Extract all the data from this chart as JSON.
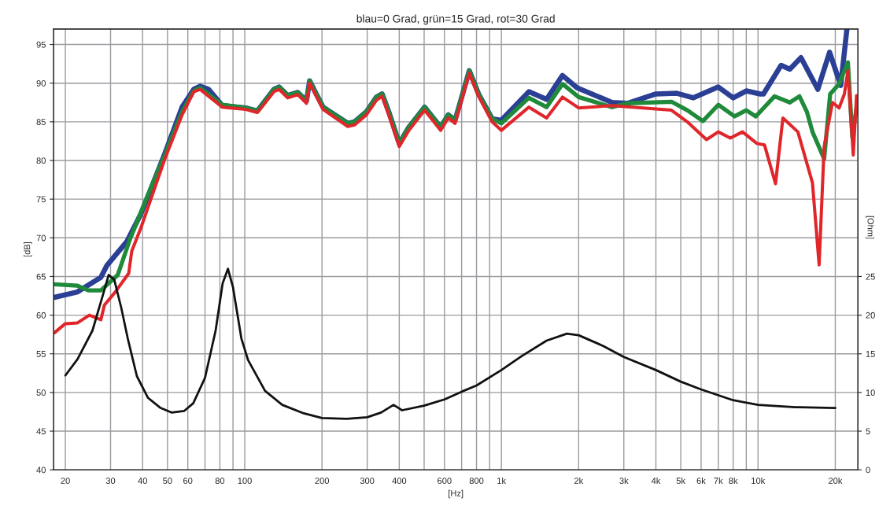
{
  "chart_data": {
    "type": "line",
    "title": "blau=0 Grad, grün=15 Grad, rot=30 Grad",
    "xlabel": "[Hz]",
    "ylabel": "[dB]",
    "y2label": "[Ohm]",
    "log": "x",
    "grid": true,
    "marker": "none",
    "line_style": "solid",
    "xlim": [
      18,
      24500
    ],
    "ylim": [
      40,
      97
    ],
    "y2lim": [
      0,
      57
    ],
    "xticks": [
      20,
      30,
      40,
      50,
      60,
      {
        "value": 70,
        "label": null
      },
      80,
      {
        "value": 90,
        "label": null
      },
      100,
      200,
      300,
      400,
      {
        "value": 500,
        "label": null
      },
      600,
      {
        "value": 700,
        "label": null
      },
      800,
      {
        "value": 900,
        "label": null
      },
      {
        "value": 1000,
        "label": "1k"
      },
      {
        "value": 2000,
        "label": "2k"
      },
      {
        "value": 3000,
        "label": "3k"
      },
      {
        "value": 4000,
        "label": "4k"
      },
      {
        "value": 5000,
        "label": "5k"
      },
      {
        "value": 6000,
        "label": "6k"
      },
      {
        "value": 7000,
        "label": "7k"
      },
      {
        "value": 8000,
        "label": "8k"
      },
      {
        "value": 9000,
        "label": null
      },
      {
        "value": 10000,
        "label": "10k"
      },
      {
        "value": 20000,
        "label": "20k"
      }
    ],
    "yticks": [
      40,
      45,
      50,
      55,
      60,
      65,
      70,
      75,
      80,
      85,
      90,
      95
    ],
    "y2ticks": [
      0,
      5,
      10,
      15,
      20,
      25
    ],
    "series": [
      {
        "color": "#2b3f95",
        "x": [
          18.1,
          22.3,
          27.5,
          29,
          34.7,
          39.4,
          42,
          48.7,
          57,
          63.3,
          67,
          72.3,
          81.7,
          101,
          112,
          130,
          136,
          147,
          161,
          174,
          179,
          190,
          202,
          252,
          268,
          298,
          326,
          343,
          364,
          400,
          436,
          502,
          580,
          621,
          660,
          750,
          815,
          920,
          1000,
          1280,
          1500,
          1730,
          1970,
          2700,
          3100,
          4000,
          4800,
          5600,
          7000,
          8000,
          9000,
          10200,
          10500,
          12300,
          13300,
          14700,
          17100,
          19000,
          21000,
          22200
        ],
        "values": [
          62.3,
          63,
          64.9,
          66.4,
          69.5,
          73.1,
          75.4,
          80.8,
          86.9,
          89.2,
          89.6,
          89.2,
          87.1,
          86.8,
          86.4,
          89.2,
          89.5,
          88.4,
          88.8,
          87.7,
          90.3,
          88.6,
          86.9,
          84.8,
          85,
          86.3,
          88.2,
          88.6,
          86.3,
          82.2,
          84.3,
          86.9,
          84.3,
          85.9,
          85.2,
          91.6,
          88.6,
          85.4,
          85.2,
          88.9,
          87.9,
          91,
          89.4,
          87.5,
          87.4,
          88.6,
          88.7,
          88.1,
          89.5,
          88.1,
          89,
          88.6,
          88.6,
          92.3,
          91.8,
          93.3,
          89.2,
          94,
          89.7,
          97
        ]
      },
      {
        "color": "#1f8a3a",
        "x": [
          18.1,
          22.3,
          24.6,
          27.5,
          32,
          35.7,
          42,
          48.7,
          57,
          63.3,
          67,
          81.7,
          101,
          112,
          130,
          136,
          147,
          161,
          174,
          179,
          190,
          202,
          252,
          268,
          298,
          326,
          343,
          364,
          400,
          436,
          502,
          580,
          621,
          660,
          750,
          815,
          920,
          1000,
          1280,
          1500,
          1730,
          2000,
          2700,
          3100,
          4600,
          5300,
          6100,
          7000,
          8100,
          9000,
          9800,
          11600,
          13300,
          14500,
          15500,
          16300,
          18100,
          19100,
          20700,
          22400,
          23300,
          24200
        ],
        "values": [
          64,
          63.8,
          63.2,
          63.2,
          65.2,
          69.8,
          75.6,
          80.6,
          86.3,
          89,
          89.4,
          87.2,
          86.8,
          86.4,
          89.2,
          89.5,
          88.4,
          88.8,
          87.7,
          90.3,
          88.6,
          86.9,
          84.8,
          85,
          86.3,
          88.2,
          88.6,
          86.3,
          82.2,
          84.3,
          86.9,
          84.3,
          85.9,
          85.2,
          91.6,
          88.6,
          85.4,
          84.8,
          88.1,
          86.9,
          89.9,
          88.2,
          86.9,
          87.4,
          87.6,
          86.5,
          85.1,
          87.2,
          85.7,
          86.5,
          85.7,
          88.3,
          87.5,
          88.3,
          86.3,
          83.7,
          80.2,
          88.6,
          89.9,
          92.7,
          83,
          86.8
        ]
      },
      {
        "color": "#e0262a",
        "x": [
          18.1,
          20,
          22.3,
          24.8,
          27.5,
          28.4,
          31.3,
          35.3,
          36.3,
          39.4,
          48.7,
          57,
          63.3,
          67,
          81.7,
          101,
          112,
          130,
          136,
          147,
          161,
          174,
          179,
          190,
          202,
          252,
          268,
          298,
          326,
          343,
          364,
          400,
          436,
          502,
          580,
          621,
          660,
          750,
          815,
          920,
          1000,
          1280,
          1500,
          1730,
          2000,
          2700,
          4600,
          5300,
          6300,
          7000,
          7800,
          8700,
          9900,
          10600,
          11700,
          12500,
          14300,
          16300,
          17300,
          18100,
          19500,
          20700,
          21700,
          22400,
          23500,
          24200
        ],
        "values": [
          57.7,
          58.9,
          59,
          60,
          59.4,
          61.3,
          63,
          65.4,
          68.3,
          71.3,
          80.1,
          85.9,
          88.9,
          89.2,
          86.9,
          86.6,
          86.2,
          88.9,
          89.2,
          88.1,
          88.5,
          87.4,
          90,
          88.3,
          86.6,
          84.4,
          84.6,
          85.9,
          87.8,
          88.3,
          85.9,
          81.8,
          83.9,
          86.5,
          83.9,
          85.5,
          84.8,
          91.3,
          88.3,
          85,
          83.9,
          86.9,
          85.5,
          88.2,
          86.8,
          87.1,
          86.5,
          85,
          82.7,
          83.7,
          82.9,
          83.7,
          82.2,
          82,
          77,
          85.5,
          83.7,
          77.1,
          66.5,
          81.8,
          87.5,
          86.8,
          88.6,
          91.6,
          80.7,
          88.4
        ]
      },
      {
        "color": "#111111",
        "axis": "y2",
        "x": [
          20,
          22.3,
          25.5,
          28,
          29.5,
          31,
          33,
          35,
          38,
          42,
          47,
          52,
          58,
          63,
          70,
          77,
          82,
          86,
          90,
          97,
          103,
          120,
          140,
          170,
          200,
          250,
          300,
          340,
          380,
          410,
          500,
          600,
          700,
          800,
          1000,
          1200,
          1500,
          1800,
          2000,
          2500,
          3000,
          4000,
          5000,
          6000,
          8000,
          10000,
          14000,
          20000
        ],
        "values": [
          12.2,
          14.3,
          18,
          22.6,
          25.2,
          24.6,
          21,
          17,
          12.1,
          9.3,
          8,
          7.4,
          7.6,
          8.6,
          11.9,
          18,
          24.1,
          26,
          23.6,
          17,
          14.2,
          10.2,
          8.4,
          7.3,
          6.7,
          6.6,
          6.8,
          7.4,
          8.4,
          7.7,
          8.3,
          9.1,
          10.1,
          10.9,
          12.9,
          14.7,
          16.7,
          17.6,
          17.4,
          16,
          14.6,
          12.9,
          11.4,
          10.4,
          9,
          8.4,
          8.1,
          8
        ]
      }
    ]
  }
}
